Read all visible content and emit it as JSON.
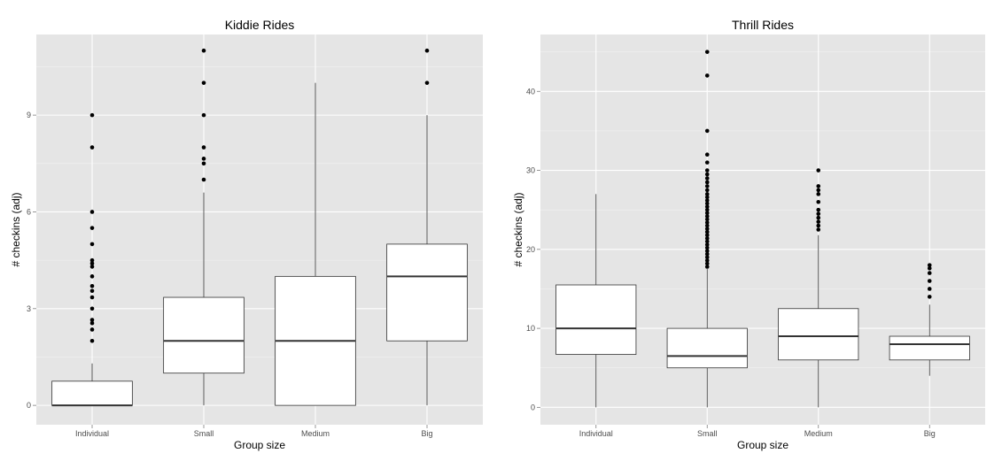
{
  "chart_data": [
    {
      "type": "box",
      "title": "Kiddie Rides",
      "xlabel": "Group size",
      "ylabel": "# checkins (adj)",
      "categories": [
        "Individual",
        "Small",
        "Medium",
        "Big"
      ],
      "yticks": [
        0,
        3,
        6,
        9
      ],
      "ylim": [
        -0.6,
        11.5
      ],
      "grid": true,
      "background": "#e5e5e5",
      "boxes": [
        {
          "category": "Individual",
          "min": 0,
          "q1": 0,
          "median": 0,
          "q3": 0.75,
          "max": 1.3,
          "outliers": [
            2.0,
            2.35,
            2.55,
            2.65,
            3.0,
            3.35,
            3.55,
            3.7,
            4.0,
            4.3,
            4.4,
            4.5,
            5.0,
            5.5,
            6.0,
            8.0,
            9.0
          ]
        },
        {
          "category": "Small",
          "min": 0,
          "q1": 1.0,
          "median": 2.0,
          "q3": 3.35,
          "max": 6.6,
          "outliers": [
            7.0,
            7.5,
            7.65,
            8.0,
            9.0,
            10.0,
            11.0
          ]
        },
        {
          "category": "Medium",
          "min": 0,
          "q1": 0,
          "median": 2.0,
          "q3": 4.0,
          "max": 10.0,
          "outliers": []
        },
        {
          "category": "Big",
          "min": 0,
          "q1": 2.0,
          "median": 4.0,
          "q3": 5.0,
          "max": 9.0,
          "outliers": [
            10.0,
            11.0
          ]
        }
      ]
    },
    {
      "type": "box",
      "title": "Thrill Rides",
      "xlabel": "Group size",
      "ylabel": "# checkins (adj)",
      "categories": [
        "Individual",
        "Small",
        "Medium",
        "Big"
      ],
      "yticks": [
        0,
        10,
        20,
        30,
        40
      ],
      "ylim": [
        -2.2,
        47.2
      ],
      "grid": true,
      "background": "#e5e5e5",
      "boxes": [
        {
          "category": "Individual",
          "min": 0,
          "q1": 6.7,
          "median": 10.0,
          "q3": 15.5,
          "max": 27.0,
          "outliers": []
        },
        {
          "category": "Small",
          "min": 0,
          "q1": 5.0,
          "median": 6.5,
          "q3": 10.0,
          "max": 17.5,
          "outliers": [
            17.8,
            18.2,
            18.6,
            19.0,
            19.4,
            19.8,
            20.2,
            20.6,
            21.0,
            21.4,
            21.8,
            22.2,
            22.6,
            23.0,
            23.4,
            23.8,
            24.2,
            24.6,
            25.0,
            25.4,
            25.8,
            26.2,
            26.6,
            27.0,
            27.5,
            28.0,
            28.5,
            29.0,
            29.5,
            30.0,
            31.0,
            32.0,
            35.0,
            42.0,
            45.0
          ]
        },
        {
          "category": "Medium",
          "min": 0,
          "q1": 6.0,
          "median": 9.0,
          "q3": 12.5,
          "max": 21.8,
          "outliers": [
            22.5,
            23.0,
            23.5,
            24.0,
            24.5,
            25.0,
            26.0,
            27.0,
            27.5,
            28.0,
            30.0
          ]
        },
        {
          "category": "Big",
          "min": 4.0,
          "q1": 6.0,
          "median": 8.0,
          "q3": 9.0,
          "max": 13.0,
          "outliers": [
            14.0,
            15.0,
            16.0,
            17.0,
            17.6,
            18.0
          ]
        }
      ]
    }
  ]
}
